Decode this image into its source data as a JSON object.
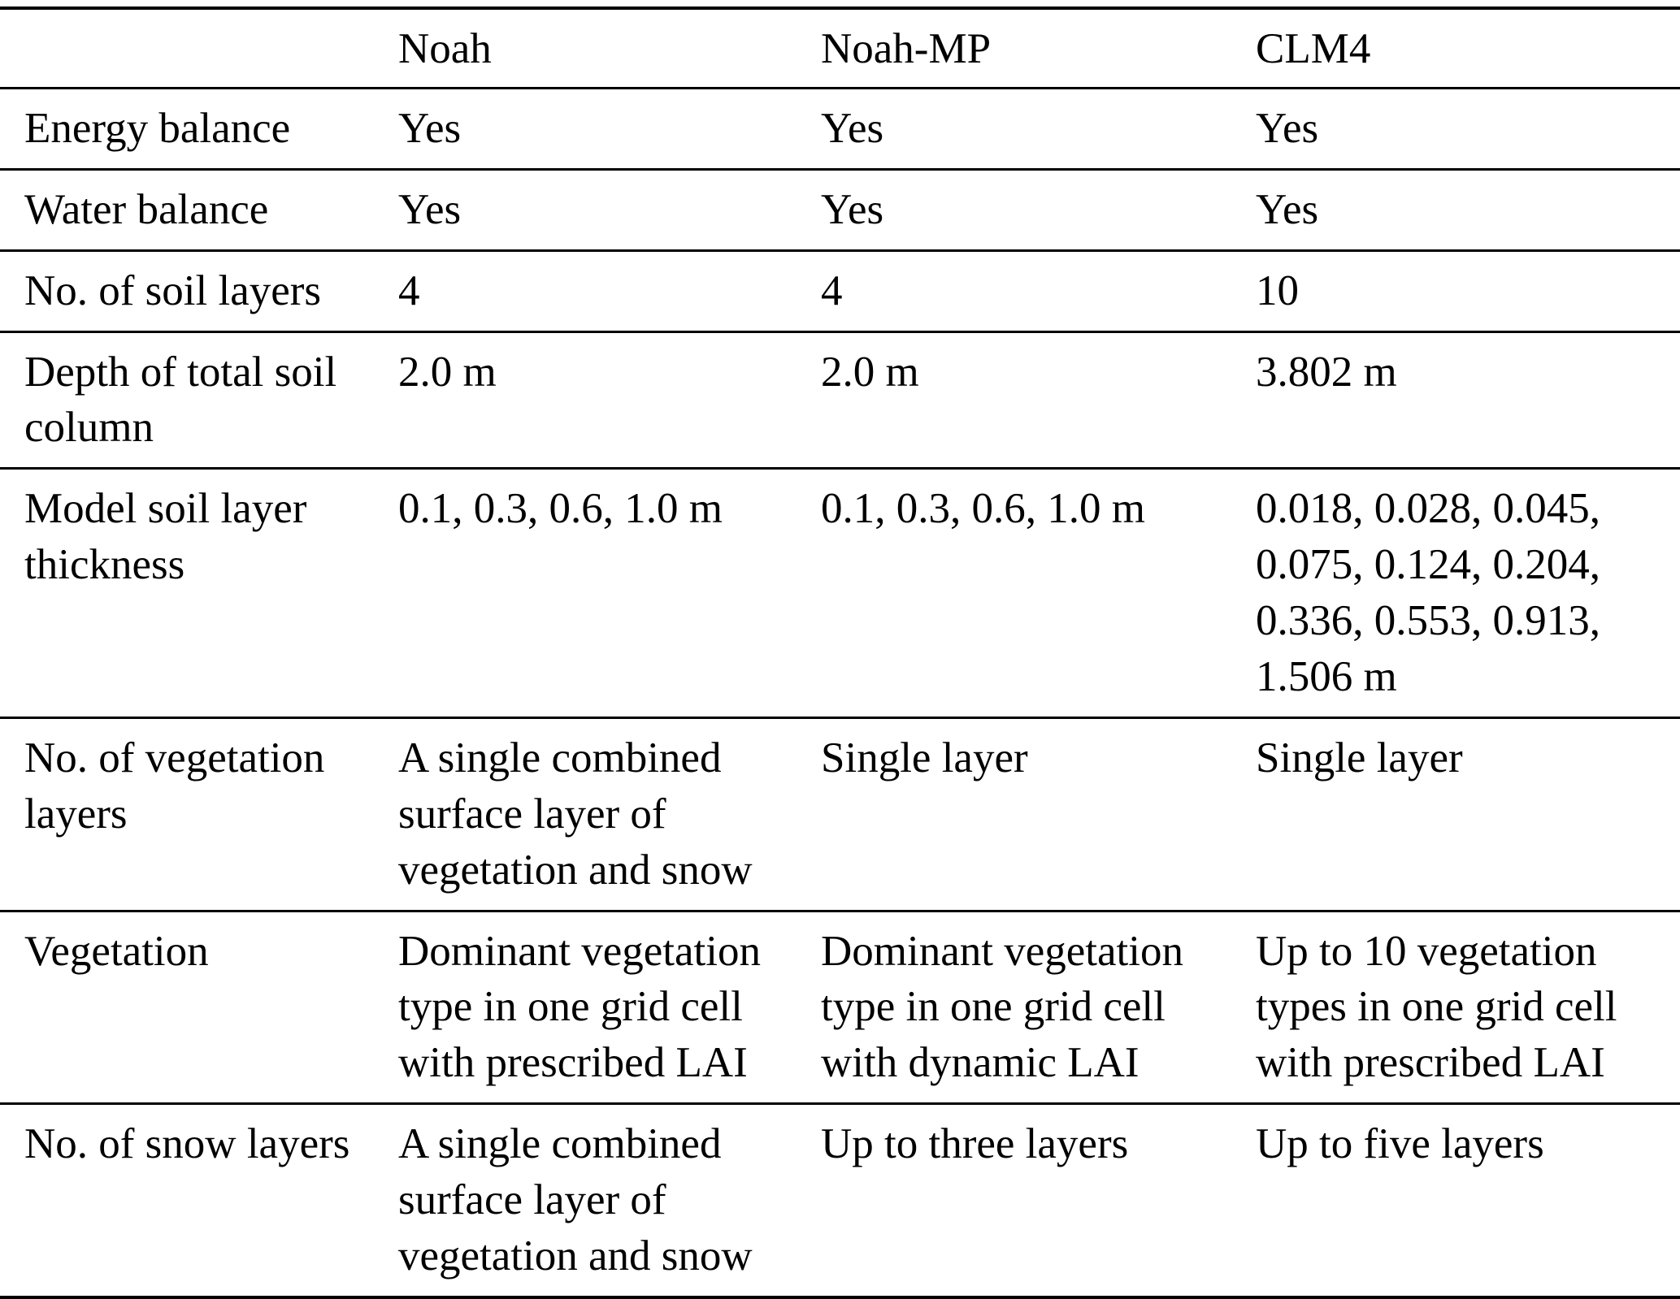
{
  "table": {
    "header": {
      "property": "",
      "noah": "Noah",
      "noahmp": "Noah-MP",
      "clm4": "CLM4"
    },
    "rows": [
      {
        "label": "Energy balance",
        "noah": "Yes",
        "noahmp": "Yes",
        "clm4": "Yes"
      },
      {
        "label": "Water balance",
        "noah": "Yes",
        "noahmp": "Yes",
        "clm4": "Yes"
      },
      {
        "label": "No. of soil layers",
        "noah": "4",
        "noahmp": "4",
        "clm4": "10"
      },
      {
        "label": "Depth of total soil column",
        "noah": "2.0 m",
        "noahmp": "2.0 m",
        "clm4": "3.802 m"
      },
      {
        "label": "Model soil layer thickness",
        "noah": "0.1, 0.3, 0.6, 1.0 m",
        "noahmp": "0.1, 0.3, 0.6, 1.0 m",
        "clm4": "0.018, 0.028, 0.045, 0.075, 0.124, 0.204, 0.336, 0.553, 0.913, 1.506 m"
      },
      {
        "label": "No. of vegetation layers",
        "noah": "A single combined surface layer of vegetation and snow",
        "noahmp": "Single layer",
        "clm4": "Single layer"
      },
      {
        "label": "Vegetation",
        "noah": "Dominant vegetation type in one grid cell with prescribed LAI",
        "noahmp": "Dominant vegetation type in one grid cell with dynamic LAI",
        "clm4": "Up to 10 vegetation types in one grid cell with prescribed LAI"
      },
      {
        "label": "No. of snow layers",
        "noah": "A single combined surface layer of vegetation and snow",
        "noahmp": "Up to three layers",
        "clm4": "Up to five layers"
      }
    ]
  }
}
